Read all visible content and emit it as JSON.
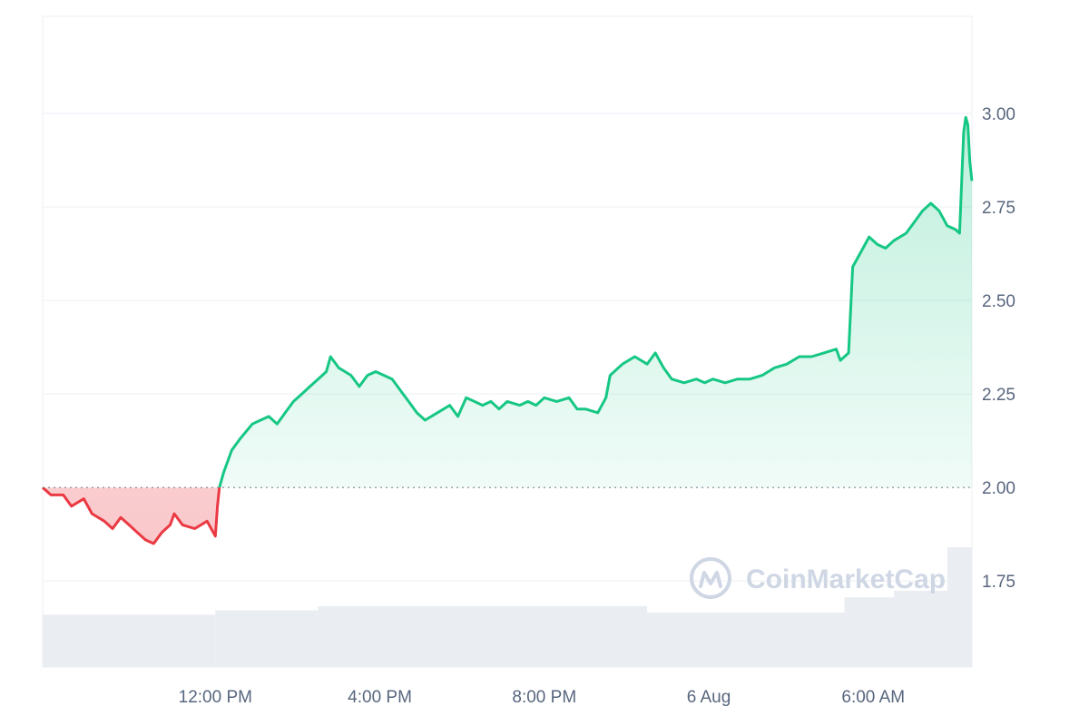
{
  "watermark": {
    "text": "CoinMarketCap",
    "icon": "coinmarketcap-logo-icon"
  },
  "chart_data": {
    "type": "area",
    "title": "",
    "xlabel": "",
    "ylabel": "",
    "baseline": 2.0,
    "baseline_style": "dotted",
    "ylim": [
      1.52,
      3.26
    ],
    "y_ticks": [
      1.75,
      2.0,
      2.25,
      2.5,
      2.75,
      3.0
    ],
    "y_tick_labels": [
      "1.75",
      "2.00",
      "2.25",
      "2.50",
      "2.75",
      "3.00"
    ],
    "y_axis_side": "right",
    "x_range": [
      7.8,
      30.4
    ],
    "x_ticks": [
      12,
      16,
      20,
      24,
      28
    ],
    "x_tick_labels": [
      "12:00 PM",
      "4:00 PM",
      "8:00 PM",
      "6 Aug",
      "6:00 AM"
    ],
    "x_unit": "hours since 00:00 on the day before 6 Aug",
    "grid": true,
    "colors": {
      "above": "#16c784",
      "below": "#ea3943",
      "grid": "#eff2f5",
      "axis_text": "#58667e",
      "volume": "#eaedf2"
    },
    "series": [
      {
        "values": [
          [
            7.8,
            2.0
          ],
          [
            8.0,
            1.98
          ],
          [
            8.3,
            1.98
          ],
          [
            8.5,
            1.95
          ],
          [
            8.8,
            1.97
          ],
          [
            9.0,
            1.93
          ],
          [
            9.3,
            1.91
          ],
          [
            9.5,
            1.89
          ],
          [
            9.7,
            1.92
          ],
          [
            9.9,
            1.9
          ],
          [
            10.1,
            1.88
          ],
          [
            10.3,
            1.86
          ],
          [
            10.5,
            1.85
          ],
          [
            10.7,
            1.88
          ],
          [
            10.9,
            1.9
          ],
          [
            11.0,
            1.93
          ],
          [
            11.2,
            1.9
          ],
          [
            11.5,
            1.89
          ],
          [
            11.8,
            1.91
          ],
          [
            12.0,
            1.87
          ],
          [
            12.05,
            1.95
          ],
          [
            12.1,
            2.0
          ],
          [
            12.2,
            2.04
          ],
          [
            12.4,
            2.1
          ],
          [
            12.6,
            2.13
          ],
          [
            12.9,
            2.17
          ],
          [
            13.1,
            2.18
          ],
          [
            13.3,
            2.19
          ],
          [
            13.5,
            2.17
          ],
          [
            13.7,
            2.2
          ],
          [
            13.9,
            2.23
          ],
          [
            14.1,
            2.25
          ],
          [
            14.3,
            2.27
          ],
          [
            14.5,
            2.29
          ],
          [
            14.7,
            2.31
          ],
          [
            14.8,
            2.35
          ],
          [
            15.0,
            2.32
          ],
          [
            15.3,
            2.3
          ],
          [
            15.5,
            2.27
          ],
          [
            15.7,
            2.3
          ],
          [
            15.9,
            2.31
          ],
          [
            16.1,
            2.3
          ],
          [
            16.3,
            2.29
          ],
          [
            16.5,
            2.26
          ],
          [
            16.7,
            2.23
          ],
          [
            16.9,
            2.2
          ],
          [
            17.1,
            2.18
          ],
          [
            17.4,
            2.2
          ],
          [
            17.7,
            2.22
          ],
          [
            17.9,
            2.19
          ],
          [
            18.1,
            2.24
          ],
          [
            18.3,
            2.23
          ],
          [
            18.5,
            2.22
          ],
          [
            18.7,
            2.23
          ],
          [
            18.9,
            2.21
          ],
          [
            19.1,
            2.23
          ],
          [
            19.4,
            2.22
          ],
          [
            19.6,
            2.23
          ],
          [
            19.8,
            2.22
          ],
          [
            20.0,
            2.24
          ],
          [
            20.3,
            2.23
          ],
          [
            20.6,
            2.24
          ],
          [
            20.8,
            2.21
          ],
          [
            21.0,
            2.21
          ],
          [
            21.3,
            2.2
          ],
          [
            21.5,
            2.24
          ],
          [
            21.6,
            2.3
          ],
          [
            21.9,
            2.33
          ],
          [
            22.2,
            2.35
          ],
          [
            22.5,
            2.33
          ],
          [
            22.7,
            2.36
          ],
          [
            22.9,
            2.32
          ],
          [
            23.1,
            2.29
          ],
          [
            23.4,
            2.28
          ],
          [
            23.7,
            2.29
          ],
          [
            23.9,
            2.28
          ],
          [
            24.1,
            2.29
          ],
          [
            24.4,
            2.28
          ],
          [
            24.7,
            2.29
          ],
          [
            25.0,
            2.29
          ],
          [
            25.3,
            2.3
          ],
          [
            25.6,
            2.32
          ],
          [
            25.9,
            2.33
          ],
          [
            26.2,
            2.35
          ],
          [
            26.5,
            2.35
          ],
          [
            26.8,
            2.36
          ],
          [
            27.1,
            2.37
          ],
          [
            27.2,
            2.34
          ],
          [
            27.4,
            2.36
          ],
          [
            27.5,
            2.59
          ],
          [
            27.7,
            2.63
          ],
          [
            27.9,
            2.67
          ],
          [
            28.1,
            2.65
          ],
          [
            28.3,
            2.64
          ],
          [
            28.5,
            2.66
          ],
          [
            28.8,
            2.68
          ],
          [
            29.0,
            2.71
          ],
          [
            29.2,
            2.74
          ],
          [
            29.4,
            2.76
          ],
          [
            29.6,
            2.74
          ],
          [
            29.8,
            2.7
          ],
          [
            30.0,
            2.69
          ],
          [
            30.1,
            2.68
          ],
          [
            30.2,
            2.95
          ],
          [
            30.25,
            2.99
          ],
          [
            30.3,
            2.97
          ],
          [
            30.35,
            2.87
          ],
          [
            30.4,
            2.82
          ]
        ]
      }
    ],
    "volume_bars": [
      {
        "x0": 7.8,
        "x1": 12.0,
        "v": 0.24
      },
      {
        "x0": 12.0,
        "x1": 14.5,
        "v": 0.26
      },
      {
        "x0": 14.5,
        "x1": 22.5,
        "v": 0.28
      },
      {
        "x0": 22.5,
        "x1": 27.3,
        "v": 0.25
      },
      {
        "x0": 27.3,
        "x1": 28.5,
        "v": 0.32
      },
      {
        "x0": 28.5,
        "x1": 29.8,
        "v": 0.35
      },
      {
        "x0": 29.8,
        "x1": 30.4,
        "v": 0.55
      }
    ]
  }
}
